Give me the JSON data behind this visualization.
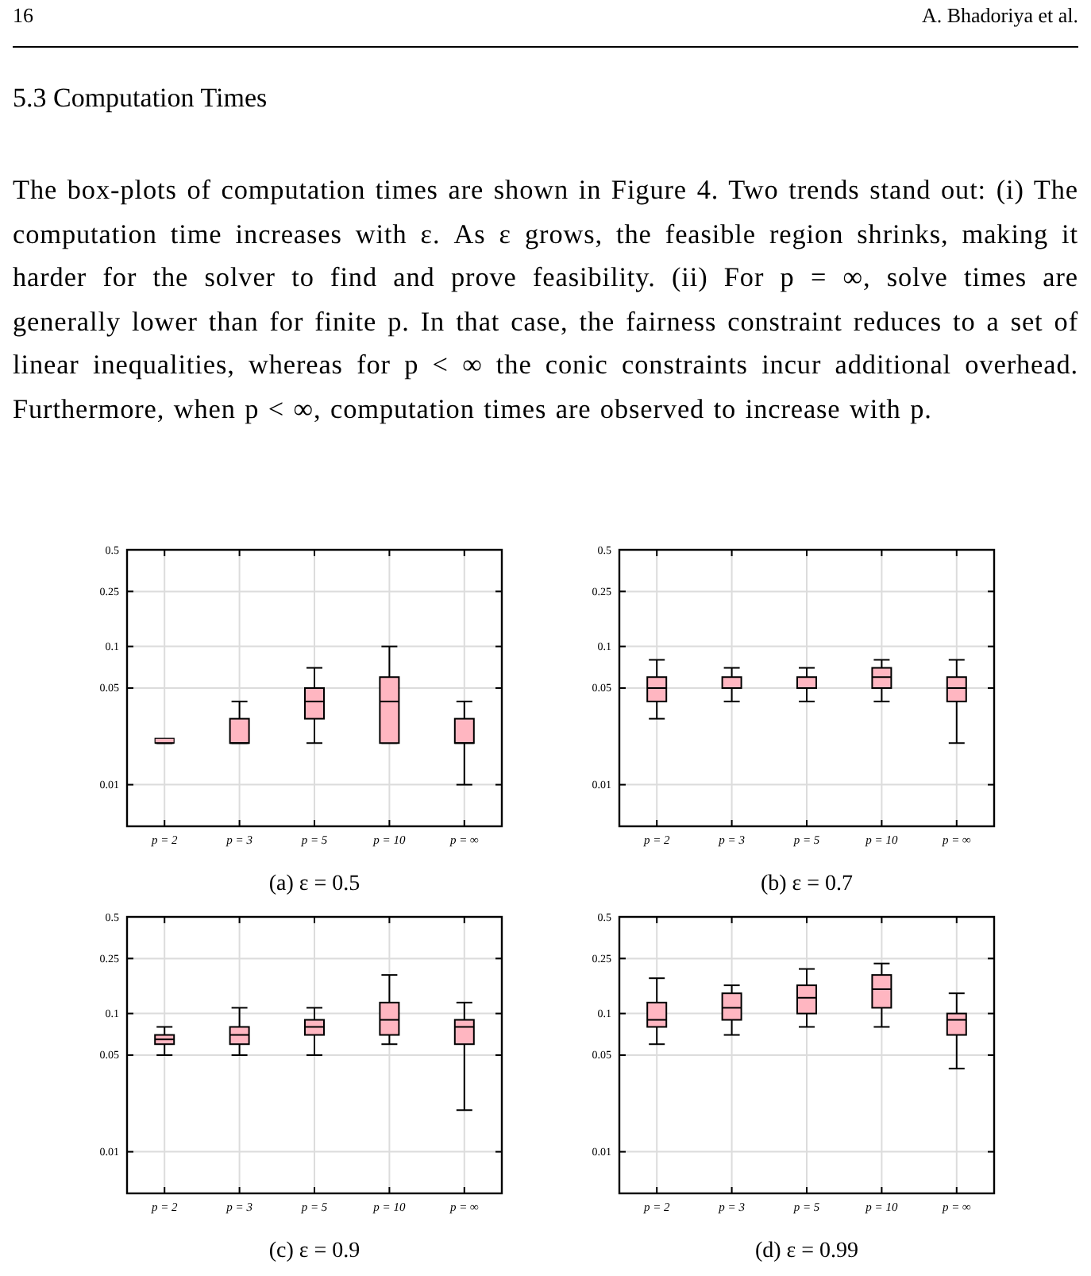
{
  "chart_data": [
    {
      "type": "box",
      "title": "(a) ε = 0.5",
      "categories": [
        "p = 2",
        "p = 3",
        "p = 5",
        "p = 10",
        "p = ∞"
      ],
      "color": "#ffb6c1",
      "ylim": [
        0.005,
        0.5
      ],
      "yticks": [
        0.01,
        0.05,
        0.1,
        0.25,
        0.5
      ],
      "log": true,
      "grid": true,
      "annotations": [
        "16",
        "A. Bhadoriya et al.",
        "5.3 Computation Times",
        "The box-plots of computation times are shown in Figure 4. Two trends stand out: (i) The computation time increases with ε. As ε grows, the feasible region shrinks, making it harder for the solver to find and prove feasibility. (ii) For p = ∞, solve times are generally lower than for finite p. In that case, the fairness constraint reduces to a set of linear inequalities, whereas for p < ∞ the conic constraints incur additional overhead. Furthermore, when p < ∞, computation times are observed to increase with p."
      ],
      "boxes": [
        {
          "low": 0.02,
          "q1": 0.02,
          "median": 0.02,
          "q3": 0.02,
          "high": 0.02
        },
        {
          "low": 0.02,
          "q1": 0.02,
          "median": 0.02,
          "q3": 0.03,
          "high": 0.04
        },
        {
          "low": 0.02,
          "q1": 0.03,
          "median": 0.04,
          "q3": 0.05,
          "high": 0.07
        },
        {
          "low": 0.02,
          "q1": 0.02,
          "median": 0.04,
          "q3": 0.06,
          "high": 0.1
        },
        {
          "low": 0.01,
          "q1": 0.02,
          "median": 0.02,
          "q3": 0.03,
          "high": 0.04
        }
      ]
    },
    {
      "type": "box",
      "title": "(b) ε = 0.7",
      "categories": [
        "p = 2",
        "p = 3",
        "p = 5",
        "p = 10",
        "p = ∞"
      ],
      "color": "#ffb6c1",
      "ylim": [
        0.005,
        0.5
      ],
      "yticks": [
        0.01,
        0.05,
        0.1,
        0.25,
        0.5
      ],
      "log": true,
      "grid": true,
      "boxes": [
        {
          "low": 0.03,
          "q1": 0.04,
          "median": 0.05,
          "q3": 0.06,
          "high": 0.08
        },
        {
          "low": 0.04,
          "q1": 0.05,
          "median": 0.05,
          "q3": 0.06,
          "high": 0.07
        },
        {
          "low": 0.04,
          "q1": 0.05,
          "median": 0.05,
          "q3": 0.06,
          "high": 0.07
        },
        {
          "low": 0.04,
          "q1": 0.05,
          "median": 0.06,
          "q3": 0.07,
          "high": 0.08
        },
        {
          "low": 0.02,
          "q1": 0.04,
          "median": 0.05,
          "q3": 0.06,
          "high": 0.08
        }
      ]
    },
    {
      "type": "box",
      "title": "(c) ε = 0.9",
      "categories": [
        "p = 2",
        "p = 3",
        "p = 5",
        "p = 10",
        "p = ∞"
      ],
      "color": "#ffb6c1",
      "ylim": [
        0.005,
        0.5
      ],
      "yticks": [
        0.01,
        0.05,
        0.1,
        0.25,
        0.5
      ],
      "log": true,
      "grid": true,
      "boxes": [
        {
          "low": 0.05,
          "q1": 0.06,
          "median": 0.065,
          "q3": 0.07,
          "high": 0.08
        },
        {
          "low": 0.05,
          "q1": 0.06,
          "median": 0.07,
          "q3": 0.08,
          "high": 0.11
        },
        {
          "low": 0.05,
          "q1": 0.07,
          "median": 0.08,
          "q3": 0.09,
          "high": 0.11
        },
        {
          "low": 0.06,
          "q1": 0.07,
          "median": 0.09,
          "q3": 0.12,
          "high": 0.19
        },
        {
          "low": 0.02,
          "q1": 0.06,
          "median": 0.08,
          "q3": 0.09,
          "high": 0.12
        }
      ]
    },
    {
      "type": "box",
      "title": "(d) ε = 0.99",
      "categories": [
        "p = 2",
        "p = 3",
        "p = 5",
        "p = 10",
        "p = ∞"
      ],
      "color": "#ffb6c1",
      "ylim": [
        0.005,
        0.5
      ],
      "yticks": [
        0.01,
        0.05,
        0.1,
        0.25,
        0.5
      ],
      "log": true,
      "grid": true,
      "boxes": [
        {
          "low": 0.06,
          "q1": 0.08,
          "median": 0.09,
          "q3": 0.12,
          "high": 0.18
        },
        {
          "low": 0.07,
          "q1": 0.09,
          "median": 0.11,
          "q3": 0.14,
          "high": 0.16
        },
        {
          "low": 0.08,
          "q1": 0.1,
          "median": 0.13,
          "q3": 0.16,
          "high": 0.21
        },
        {
          "low": 0.08,
          "q1": 0.11,
          "median": 0.15,
          "q3": 0.19,
          "high": 0.23
        },
        {
          "low": 0.04,
          "q1": 0.07,
          "median": 0.09,
          "q3": 0.1,
          "high": 0.14
        }
      ]
    }
  ]
}
